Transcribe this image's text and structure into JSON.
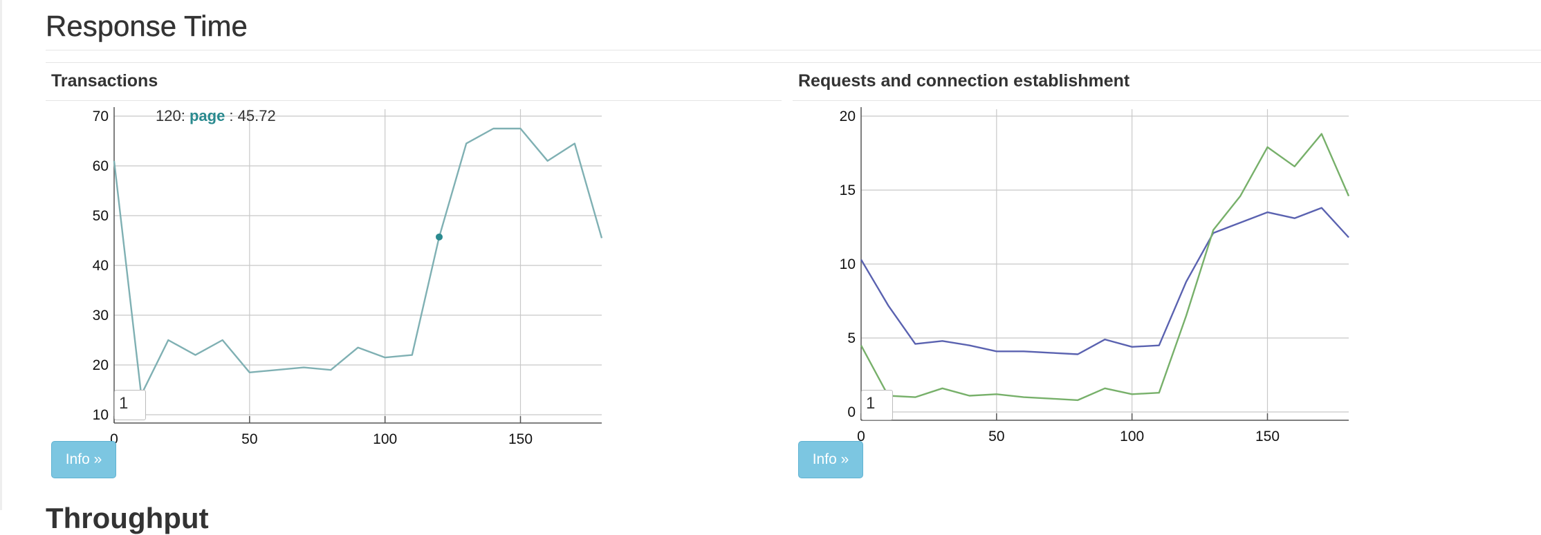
{
  "page": {
    "title": "Response Time",
    "next_section_title": "Throughput"
  },
  "panels": [
    {
      "title": "Transactions",
      "info_label": "Info »",
      "roll_value": "1",
      "tooltip": {
        "x": "120",
        "series": "page",
        "value": "45.72"
      }
    },
    {
      "title": "Requests and connection establishment",
      "info_label": "Info »",
      "roll_value": "1"
    }
  ],
  "colors": {
    "teal": "#7fb0b3",
    "blue": "#5a62b0",
    "green": "#77b06a",
    "highlight": "#2a8a8f",
    "button": "#7cc6e1"
  },
  "chart_data": [
    {
      "type": "line",
      "title": "Transactions",
      "xlim": [
        0,
        180
      ],
      "ylim": [
        10,
        70
      ],
      "x_ticks": [
        0,
        50,
        100,
        150
      ],
      "y_ticks": [
        10,
        20,
        30,
        40,
        50,
        60,
        70
      ],
      "x": [
        0,
        10,
        20,
        30,
        40,
        50,
        60,
        70,
        80,
        90,
        100,
        110,
        120,
        130,
        140,
        150,
        160,
        170,
        180
      ],
      "series": [
        {
          "name": "page",
          "color": "#7fb0b3",
          "values": [
            61,
            14,
            25,
            22,
            25,
            18.5,
            19,
            19.5,
            19,
            23.5,
            21.5,
            22,
            45.72,
            64.5,
            67.5,
            67.5,
            61,
            64.5,
            45.5
          ]
        }
      ],
      "highlight": {
        "x": 120,
        "y": 45.72
      },
      "grid": true
    },
    {
      "type": "line",
      "title": "Requests and connection establishment",
      "xlim": [
        0,
        180
      ],
      "ylim": [
        0,
        20
      ],
      "x_ticks": [
        0,
        50,
        100,
        150
      ],
      "y_ticks": [
        0,
        5,
        10,
        15,
        20
      ],
      "x": [
        0,
        10,
        20,
        30,
        40,
        50,
        60,
        70,
        80,
        90,
        100,
        110,
        120,
        130,
        140,
        150,
        160,
        170,
        180
      ],
      "series": [
        {
          "color": "#5a62b0",
          "values": [
            10.3,
            7.2,
            4.6,
            4.8,
            4.5,
            4.1,
            4.1,
            4.0,
            3.9,
            4.9,
            4.4,
            4.5,
            8.8,
            12.1,
            12.8,
            13.5,
            13.1,
            13.8,
            11.8
          ]
        },
        {
          "color": "#77b06a",
          "values": [
            4.5,
            1.1,
            1.0,
            1.6,
            1.1,
            1.2,
            1.0,
            0.9,
            0.8,
            1.6,
            1.2,
            1.3,
            6.5,
            12.3,
            14.6,
            17.9,
            16.6,
            18.8,
            14.6
          ]
        }
      ],
      "grid": true
    }
  ]
}
